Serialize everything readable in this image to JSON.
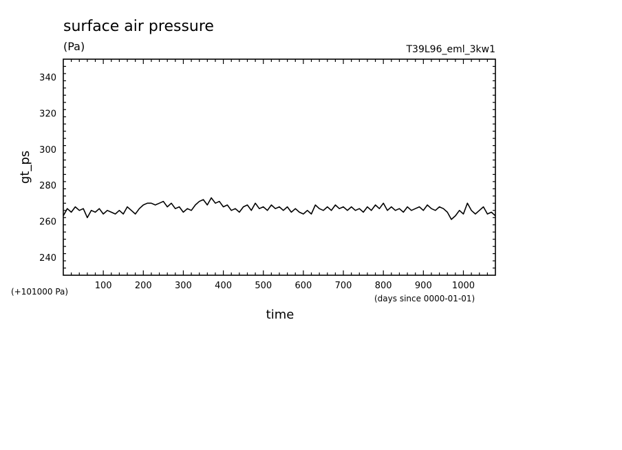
{
  "chart_data": {
    "type": "line",
    "title": "surface air pressure",
    "units": "(Pa)",
    "run_label": "T39L96_eml_3kw1",
    "ylabel": "gt_ps",
    "xlabel": "time",
    "x_units": "(days since 0000-01-01)",
    "y_offset_label": "(+101000 Pa)",
    "xlim": [
      0,
      1080
    ],
    "ylim": [
      230,
      350
    ],
    "x_ticks": [
      100,
      200,
      300,
      400,
      500,
      600,
      700,
      800,
      900,
      1000
    ],
    "x_tick_labels": [
      "100",
      "200",
      "300",
      "400",
      "500",
      "600",
      "700",
      "800",
      "900",
      "1000"
    ],
    "y_ticks": [
      240,
      260,
      280,
      300,
      320,
      340
    ],
    "y_tick_labels": [
      "240",
      "260",
      "280",
      "300",
      "320",
      "340"
    ],
    "grid": false,
    "line_color": "#000000",
    "series": [
      {
        "x": [
          0,
          10,
          20,
          30,
          40,
          50,
          60,
          70,
          80,
          90,
          100,
          110,
          120,
          130,
          140,
          150,
          160,
          170,
          180,
          190,
          200,
          210,
          220,
          230,
          240,
          250,
          260,
          270,
          280,
          290,
          300,
          310,
          320,
          330,
          340,
          350,
          360,
          370,
          380,
          390,
          400,
          410,
          420,
          430,
          440,
          450,
          460,
          470,
          480,
          490,
          500,
          510,
          520,
          530,
          540,
          550,
          560,
          570,
          580,
          590,
          600,
          610,
          620,
          630,
          640,
          650,
          660,
          670,
          680,
          690,
          700,
          710,
          720,
          730,
          740,
          750,
          760,
          770,
          780,
          790,
          800,
          810,
          820,
          830,
          840,
          850,
          860,
          870,
          880,
          890,
          900,
          910,
          920,
          930,
          940,
          950,
          960,
          970,
          980,
          990,
          1000,
          1010,
          1020,
          1030,
          1040,
          1050,
          1060,
          1070,
          1080
        ],
        "values": [
          263,
          267,
          265,
          268,
          266,
          267,
          262,
          266,
          265,
          267,
          264,
          266,
          265,
          264,
          266,
          264,
          268,
          266,
          264,
          267,
          269,
          270,
          270,
          269,
          270,
          271,
          268,
          270,
          267,
          268,
          265,
          267,
          266,
          269,
          271,
          272,
          269,
          273,
          270,
          271,
          268,
          269,
          266,
          267,
          265,
          268,
          269,
          266,
          270,
          267,
          268,
          266,
          269,
          267,
          268,
          266,
          268,
          265,
          267,
          265,
          264,
          266,
          264,
          269,
          267,
          266,
          268,
          266,
          269,
          267,
          268,
          266,
          268,
          266,
          267,
          265,
          268,
          266,
          269,
          267,
          270,
          266,
          268,
          266,
          267,
          265,
          268,
          266,
          267,
          268,
          266,
          269,
          267,
          266,
          268,
          267,
          265,
          261,
          263,
          266,
          264,
          270,
          266,
          264,
          266,
          268,
          264,
          265,
          263
        ]
      }
    ]
  }
}
